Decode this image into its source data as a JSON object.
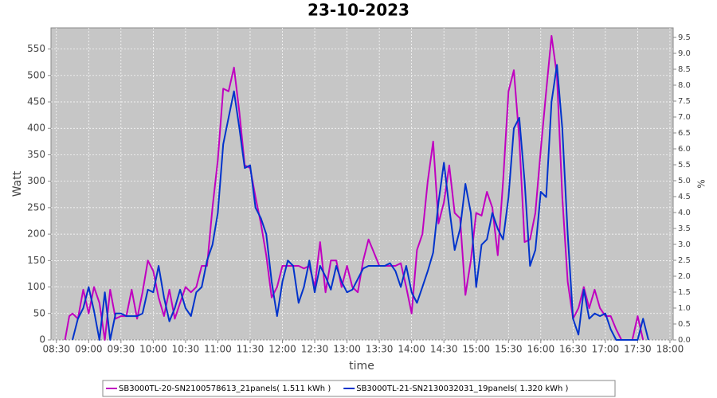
{
  "chart_data": {
    "type": "line",
    "title": "23-10-2023",
    "x_label": "time",
    "y_label": "Watt",
    "y2_label": "%",
    "xlim": [
      "08:25",
      "18:03"
    ],
    "xticks": [
      "08:30",
      "09:00",
      "09:30",
      "10:00",
      "10:30",
      "11:00",
      "11:30",
      "12:00",
      "12:30",
      "13:00",
      "13:30",
      "14:00",
      "14:30",
      "15:00",
      "15:30",
      "16:00",
      "16:30",
      "17:00",
      "17:30",
      "18:00"
    ],
    "ylim": [
      0,
      590
    ],
    "yticks": [
      0,
      50,
      100,
      150,
      200,
      250,
      300,
      350,
      400,
      450,
      500,
      550
    ],
    "y2lim": [
      0,
      9.8
    ],
    "y2ticks": [
      {
        "value": 0,
        "label": "0.0"
      },
      0.5,
      {
        "value": 1,
        "label": "1.0"
      },
      1.5,
      {
        "value": 2,
        "label": "2.0"
      },
      2.5,
      {
        "value": 3,
        "label": "3.0"
      },
      3.5,
      {
        "value": 4,
        "label": "4.0"
      },
      4.5,
      {
        "value": 5,
        "label": "5.0"
      },
      5.5,
      {
        "value": 6,
        "label": "6.0"
      },
      6.5,
      {
        "value": 7,
        "label": "7.0"
      },
      7.5,
      {
        "value": 8,
        "label": "8.0"
      },
      8.5,
      {
        "value": 9,
        "label": "9.0"
      },
      9.5
    ],
    "grid": true,
    "legend": "bottom",
    "series": [
      {
        "name": "SB3000TL-20-SN2100578613_21panels( 1.511 kWh )",
        "color": "#c000c0",
        "x": [
          "08:38",
          "08:42",
          "08:45",
          "08:50",
          "08:55",
          "09:00",
          "09:05",
          "09:10",
          "09:15",
          "09:20",
          "09:25",
          "09:30",
          "09:35",
          "09:40",
          "09:45",
          "09:50",
          "09:55",
          "10:00",
          "10:05",
          "10:10",
          "10:15",
          "10:20",
          "10:25",
          "10:30",
          "10:35",
          "10:40",
          "10:45",
          "10:50",
          "10:55",
          "11:00",
          "11:05",
          "11:10",
          "11:15",
          "11:20",
          "11:25",
          "11:30",
          "11:35",
          "11:40",
          "11:45",
          "11:50",
          "11:55",
          "12:00",
          "12:05",
          "12:10",
          "12:15",
          "12:20",
          "12:25",
          "12:30",
          "12:35",
          "12:40",
          "12:45",
          "12:50",
          "12:55",
          "13:00",
          "13:05",
          "13:10",
          "13:15",
          "13:20",
          "13:25",
          "13:30",
          "13:35",
          "13:40",
          "13:45",
          "13:50",
          "13:55",
          "14:00",
          "14:05",
          "14:10",
          "14:15",
          "14:20",
          "14:25",
          "14:30",
          "14:35",
          "14:40",
          "14:45",
          "14:50",
          "14:55",
          "15:00",
          "15:05",
          "15:10",
          "15:15",
          "15:20",
          "15:25",
          "15:30",
          "15:35",
          "15:40",
          "15:45",
          "15:50",
          "15:55",
          "16:00",
          "16:05",
          "16:10",
          "16:15",
          "16:20",
          "16:25",
          "16:30",
          "16:35",
          "16:40",
          "16:45",
          "16:50",
          "16:55",
          "17:00",
          "17:05",
          "17:10",
          "17:15",
          "17:20",
          "17:25",
          "17:30",
          "17:35"
        ],
        "values": [
          0,
          45,
          50,
          40,
          95,
          50,
          100,
          70,
          0,
          95,
          40,
          45,
          45,
          95,
          40,
          90,
          150,
          130,
          80,
          45,
          95,
          40,
          70,
          100,
          90,
          100,
          140,
          140,
          250,
          340,
          475,
          470,
          515,
          430,
          330,
          325,
          270,
          220,
          160,
          80,
          100,
          140,
          140,
          140,
          140,
          135,
          140,
          100,
          185,
          90,
          150,
          150,
          100,
          140,
          100,
          90,
          150,
          190,
          165,
          140,
          140,
          140,
          140,
          145,
          100,
          50,
          170,
          200,
          300,
          375,
          220,
          260,
          330,
          240,
          230,
          85,
          150,
          240,
          235,
          280,
          250,
          160,
          300,
          470,
          510,
          380,
          185,
          190,
          240,
          360,
          470,
          575,
          500,
          270,
          110,
          40,
          60,
          100,
          60,
          95,
          60,
          45,
          45,
          20,
          0,
          0,
          0,
          45,
          0
        ]
      },
      {
        "name": "SB3000TL-21-SN2130032031_19panels( 1.320 kWh )",
        "color": "#0033cc",
        "x": [
          "08:45",
          "08:50",
          "08:55",
          "09:00",
          "09:05",
          "09:10",
          "09:15",
          "09:20",
          "09:25",
          "09:30",
          "09:35",
          "09:40",
          "09:45",
          "09:50",
          "09:55",
          "10:00",
          "10:05",
          "10:10",
          "10:15",
          "10:20",
          "10:25",
          "10:30",
          "10:35",
          "10:40",
          "10:45",
          "10:50",
          "10:55",
          "11:00",
          "11:05",
          "11:10",
          "11:15",
          "11:20",
          "11:25",
          "11:30",
          "11:35",
          "11:40",
          "11:45",
          "11:50",
          "11:55",
          "12:00",
          "12:05",
          "12:10",
          "12:15",
          "12:20",
          "12:25",
          "12:30",
          "12:35",
          "12:40",
          "12:45",
          "12:50",
          "12:55",
          "13:00",
          "13:05",
          "13:10",
          "13:15",
          "13:20",
          "13:25",
          "13:30",
          "13:35",
          "13:40",
          "13:45",
          "13:50",
          "13:55",
          "14:00",
          "14:05",
          "14:10",
          "14:15",
          "14:20",
          "14:25",
          "14:30",
          "14:35",
          "14:40",
          "14:45",
          "14:50",
          "14:55",
          "15:00",
          "15:05",
          "15:10",
          "15:15",
          "15:20",
          "15:25",
          "15:30",
          "15:35",
          "15:40",
          "15:45",
          "15:50",
          "15:55",
          "16:00",
          "16:05",
          "16:10",
          "16:15",
          "16:20",
          "16:25",
          "16:30",
          "16:35",
          "16:40",
          "16:45",
          "16:50",
          "16:55",
          "17:00",
          "17:05",
          "17:10",
          "17:15",
          "17:20",
          "17:25",
          "17:30",
          "17:35",
          "17:40"
        ],
        "values": [
          0,
          40,
          60,
          100,
          55,
          0,
          90,
          0,
          50,
          50,
          45,
          45,
          45,
          50,
          95,
          90,
          140,
          80,
          35,
          60,
          95,
          60,
          45,
          90,
          100,
          150,
          180,
          240,
          370,
          420,
          470,
          400,
          325,
          330,
          250,
          230,
          200,
          110,
          45,
          110,
          150,
          140,
          70,
          100,
          150,
          90,
          140,
          120,
          95,
          140,
          110,
          90,
          95,
          115,
          135,
          140,
          140,
          140,
          140,
          145,
          130,
          100,
          140,
          90,
          70,
          100,
          130,
          165,
          260,
          335,
          250,
          170,
          210,
          295,
          240,
          100,
          180,
          190,
          240,
          210,
          190,
          270,
          400,
          420,
          300,
          140,
          170,
          280,
          270,
          450,
          520,
          400,
          200,
          40,
          10,
          95,
          40,
          50,
          45,
          50,
          20,
          0,
          0,
          0,
          0,
          0,
          40,
          0
        ]
      }
    ]
  }
}
